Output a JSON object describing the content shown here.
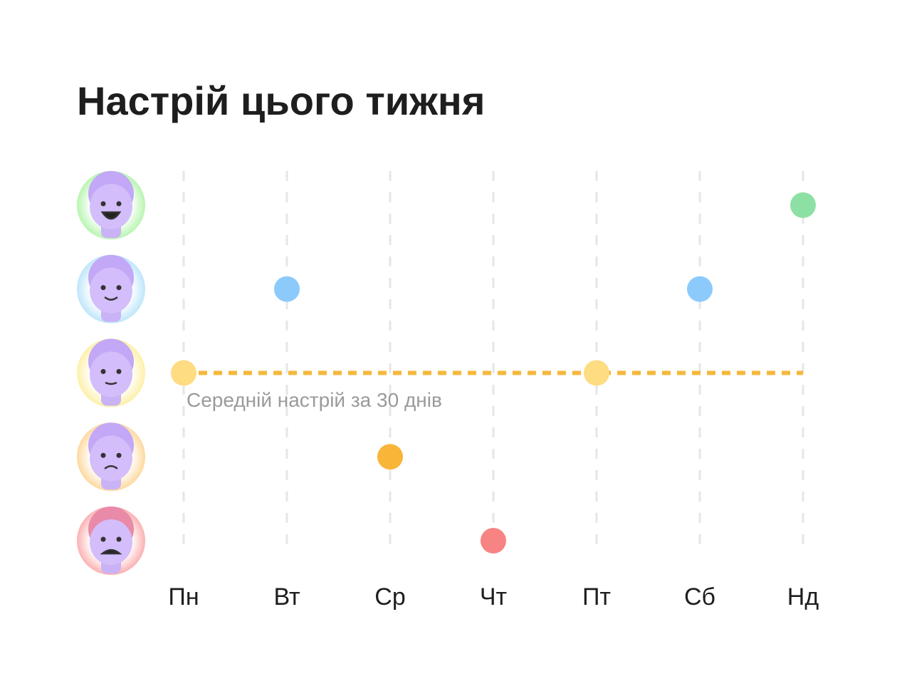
{
  "chart_data": {
    "type": "scatter",
    "title": "Настрій цього тижня",
    "categories": [
      "Пн",
      "Вт",
      "Ср",
      "Чт",
      "Пт",
      "Сб",
      "Нд"
    ],
    "values": [
      3,
      4,
      2,
      1,
      3,
      4,
      5
    ],
    "colors": [
      "#fddc82",
      "#8ccafb",
      "#f9b538",
      "#f78383",
      "#fddc82",
      "#8ccafb",
      "#8de0a3"
    ],
    "ylim": [
      1,
      5
    ],
    "yticks": [
      5,
      4,
      3,
      2,
      1
    ],
    "avatar_colors": [
      "#b8f5b0",
      "#bfe6fb",
      "#fdf0a8",
      "#fdd9a0",
      "#fbb1b1"
    ],
    "average": 3,
    "average_color": "#f5b83d",
    "average_label": "Середній настрій за 30 днів",
    "grid": true
  }
}
